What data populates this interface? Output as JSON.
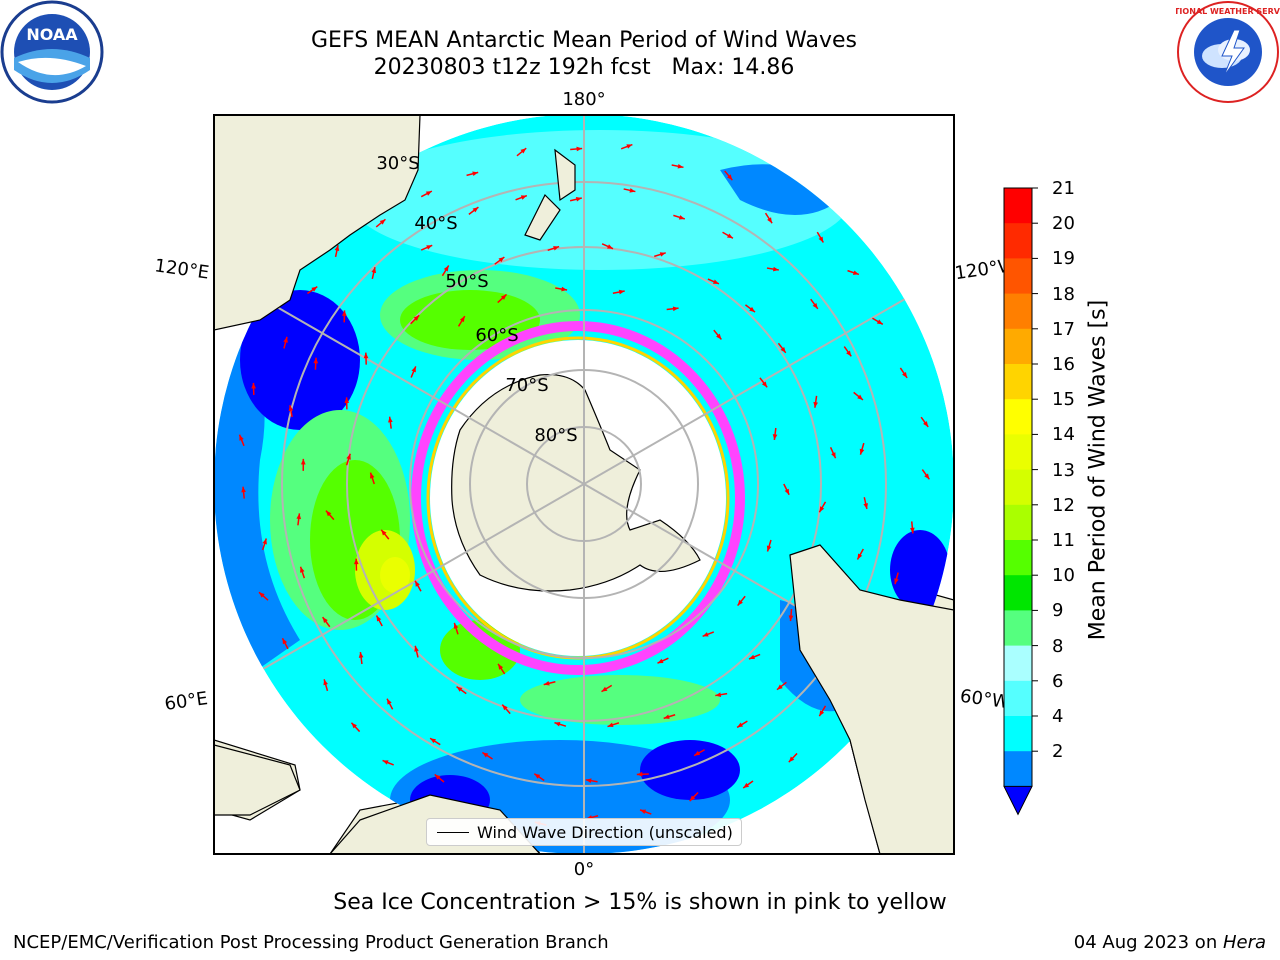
{
  "header": {
    "title_line1": "GEFS MEAN Antarctic Mean Period of Wind Waves",
    "title_line2": "20230803 t12z 192h fcst   Max: 14.86"
  },
  "logos": {
    "left": "NOAA",
    "right": "NATIONAL WEATHER SERVICE"
  },
  "map": {
    "projection": "south-polar-stereographic",
    "longitude_labels": {
      "top": "180°",
      "bottom": "0°",
      "left_upper": "120°E",
      "left_lower": "60°E",
      "right_upper": "120°W",
      "right_lower": "60°W"
    },
    "latitude_labels": [
      "30°S",
      "40°S",
      "50°S",
      "60°S",
      "70°S",
      "80°S"
    ],
    "land_color": "#efefdb",
    "vector_color": "#ff0000"
  },
  "colorbar": {
    "label": "Mean Period of Wind Waves [s]",
    "ticks": [
      "21",
      "20",
      "19",
      "18",
      "17",
      "16",
      "15",
      "14",
      "13",
      "12",
      "11",
      "10",
      "9",
      "8",
      "6",
      "4",
      "2"
    ],
    "colors_top_to_bottom": [
      "#ff0000",
      "#ff2a00",
      "#ff5500",
      "#ff7f00",
      "#ffaa00",
      "#ffd400",
      "#ffff00",
      "#eaff00",
      "#d4ff00",
      "#aaff00",
      "#55ff00",
      "#00e600",
      "#55ff7f",
      "#aaffff",
      "#55ffff",
      "#00ffff",
      "#0088ff"
    ],
    "under_color": "#0000ff"
  },
  "legend": {
    "label": "Wind Wave Direction (unscaled)"
  },
  "footer": {
    "note": "Sea Ice Concentration > 15% is shown in pink to yellow",
    "credit": "NCEP/EMC/Verification Post Processing Product Generation Branch",
    "date": "04 Aug 2023 on ",
    "machine": "Hera"
  }
}
